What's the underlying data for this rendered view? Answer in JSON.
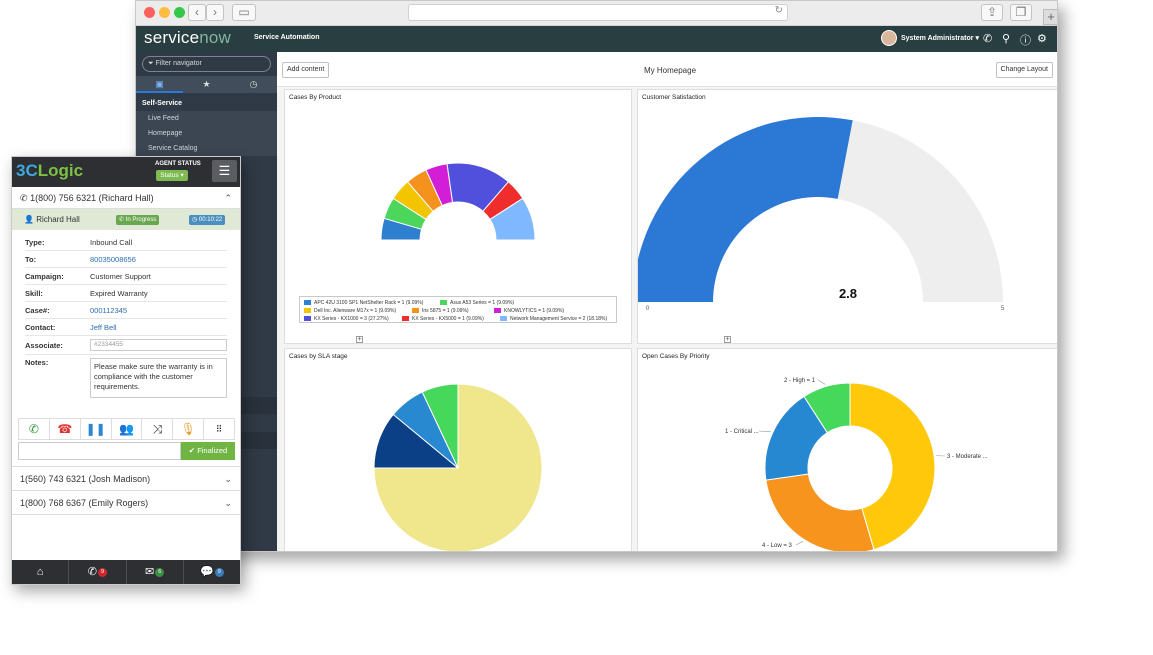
{
  "app": {
    "logo_service": "service",
    "logo_now": "now",
    "app_name": "Service Automation",
    "user_name": "System Administrator"
  },
  "nav": {
    "filter_placeholder": "Filter navigator",
    "section": "Self-Service",
    "items": [
      "Live Feed",
      "Homepage",
      "Service Catalog"
    ]
  },
  "toolbar": {
    "add_content": "Add content",
    "page_title": "My Homepage",
    "change_layout": "Change Layout"
  },
  "panels": {
    "cases_by_product": "Cases By Product",
    "customer_satisfaction": "Customer Satisfaction",
    "cases_by_sla": "Cases by SLA stage",
    "open_cases_priority": "Open Cases By Priority"
  },
  "chart_data": [
    {
      "type": "pie",
      "title": "Cases By Product",
      "style": "semi-donut",
      "legend_placement": "bottom",
      "slices": [
        {
          "label": "APC 42U 3100 SP1 NetShelter Rack = 1 (9.09%)",
          "value": 1,
          "color": "#2f7fcf"
        },
        {
          "label": "Asus A53 Series = 1 (9.09%)",
          "value": 1,
          "color": "#4cd65c"
        },
        {
          "label": "Dell Inc. Alienware M17x = 1 (9.09%)",
          "value": 1,
          "color": "#f2c500"
        },
        {
          "label": "Iris 5875 = 1 (9.09%)",
          "value": 1,
          "color": "#f5921e"
        },
        {
          "label": "KNOWLYTICS = 1 (9.09%)",
          "value": 1,
          "color": "#d21fd7"
        },
        {
          "label": "KX Series - KX1000 = 3 (27.27%)",
          "value": 3,
          "color": "#5050dd"
        },
        {
          "label": "KX Series - KX5000 = 1 (9.09%)",
          "value": 1,
          "color": "#ef2d2d"
        },
        {
          "label": "Network Management Service = 2 (18.18%)",
          "value": 2,
          "color": "#7fb8ff"
        }
      ]
    },
    {
      "type": "gauge",
      "title": "Customer Satisfaction",
      "value": 2.8,
      "value_label": "2.8",
      "min": 0,
      "max": 5,
      "min_label": "0",
      "max_label": "5",
      "color": "#2b78d5",
      "track_color": "#eeeeee"
    },
    {
      "type": "pie",
      "title": "Cases by SLA stage",
      "slices": [
        {
          "value": 75,
          "color": "#f0e68c"
        },
        {
          "value": 11,
          "color": "#0b3f86"
        },
        {
          "value": 7,
          "color": "#2888d0"
        },
        {
          "value": 7,
          "color": "#45d85b"
        }
      ]
    },
    {
      "type": "pie",
      "title": "Open Cases By Priority",
      "style": "donut",
      "slices": [
        {
          "label": "3 - Moderate ...",
          "value": 5,
          "color": "#ffc80a"
        },
        {
          "label": "4 - Low = 3",
          "value": 3,
          "color": "#f7941d"
        },
        {
          "label": "1 - Critical ...",
          "value": 2,
          "color": "#2688d0"
        },
        {
          "label": "2 - High = 1",
          "value": 1,
          "color": "#45d85b"
        }
      ]
    }
  ],
  "widget": {
    "logo_3c": "3C",
    "logo_logic": "Logic",
    "agent_status_label": "AGENT STATUS",
    "status_value": "Status",
    "active_call": "1(800) 756 6321 (Richard Hall)",
    "caller": "Richard Hall",
    "call_state": "In Progress",
    "timer": "00:10:22",
    "details": [
      {
        "key": "Type:",
        "value": "Inbound Call",
        "link": false
      },
      {
        "key": "To:",
        "value": "80035008656",
        "link": true
      },
      {
        "key": "Campaign:",
        "value": "Customer Support",
        "link": false
      },
      {
        "key": "Skill:",
        "value": "Expired Warranty",
        "link": false
      },
      {
        "key": "Case#:",
        "value": "000112345",
        "link": true
      },
      {
        "key": "Contact:",
        "value": "Jeff Bell",
        "link": true
      }
    ],
    "associate_label": "Associate:",
    "associate_placeholder": "#2334455",
    "notes_label": "Notes:",
    "notes_value": "Please make sure the warranty is in compliance with the customer requirements.",
    "finalized_label": "Finalized",
    "other_calls": [
      "1(560) 743 6321 (Josh Madison)",
      "1(800) 768 6367 (Emily Rogers)"
    ],
    "footer_counts": {
      "calls": "9",
      "messages": "6",
      "chats": "9"
    }
  }
}
